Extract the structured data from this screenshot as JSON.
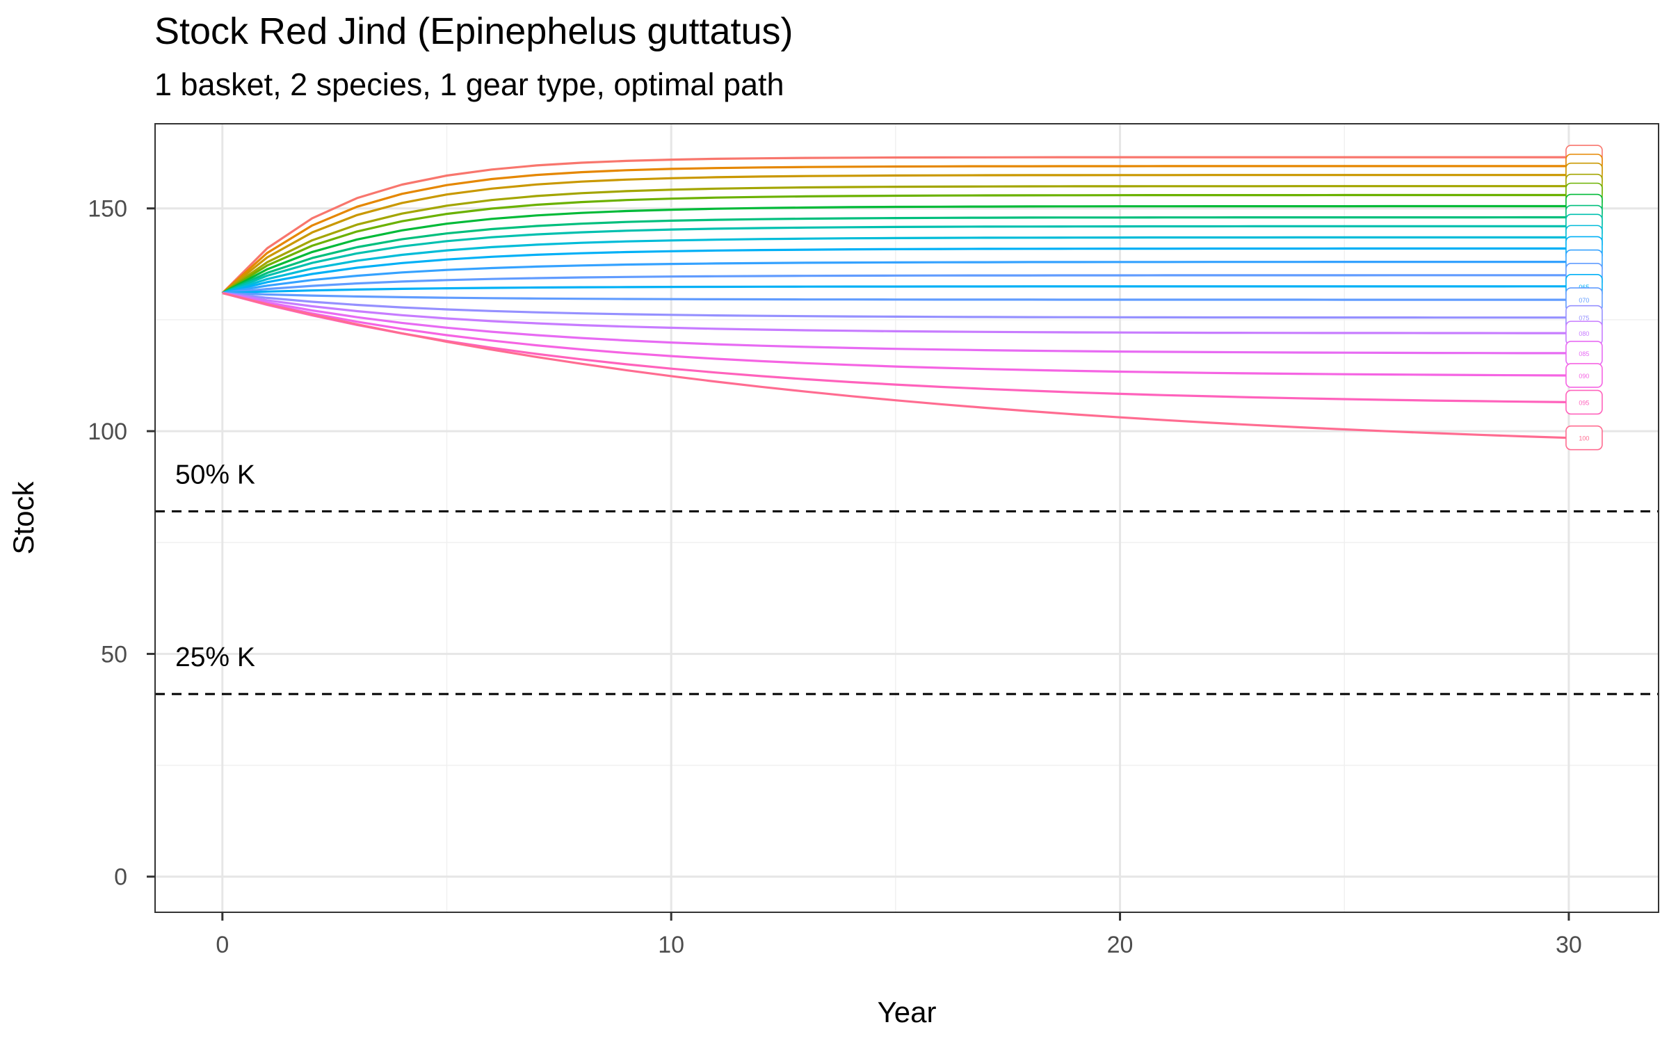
{
  "chart_data": {
    "type": "line",
    "title": "Stock Red Jind (Epinephelus guttatus)",
    "subtitle": "1 basket, 2 species, 1 gear type, optimal path",
    "xlabel": "Year",
    "ylabel": "Stock",
    "xlim": [
      -1.5,
      32
    ],
    "ylim": [
      -8,
      169
    ],
    "x_ticks": [
      0,
      10,
      20,
      30
    ],
    "y_ticks": [
      0,
      50,
      100,
      150
    ],
    "grid": true,
    "legend": "none",
    "start_value": 131,
    "reference_lines": [
      {
        "label": "50% K",
        "value": 82
      },
      {
        "label": "25% K",
        "value": 41
      }
    ],
    "series": [
      {
        "label": "",
        "final": 161.5,
        "rate": 0.4,
        "color": "#F8766D"
      },
      {
        "label": "",
        "final": 159.5,
        "rate": 0.38,
        "color": "#E58700"
      },
      {
        "label": "",
        "final": 157.5,
        "rate": 0.36,
        "color": "#C99800"
      },
      {
        "label": "",
        "final": 155.0,
        "rate": 0.34,
        "color": "#A3A500"
      },
      {
        "label": "",
        "final": 153.0,
        "rate": 0.33,
        "color": "#6BB100"
      },
      {
        "label": "",
        "final": 150.5,
        "rate": 0.32,
        "color": "#00BA38"
      },
      {
        "label": "",
        "final": 148.0,
        "rate": 0.31,
        "color": "#00BF7D"
      },
      {
        "label": "",
        "final": 146.0,
        "rate": 0.3,
        "color": "#00C0AF"
      },
      {
        "label": "",
        "final": 143.5,
        "rate": 0.29,
        "color": "#00BCD8"
      },
      {
        "label": "",
        "final": 141.0,
        "rate": 0.28,
        "color": "#00B0F6"
      },
      {
        "label": "",
        "final": 138.0,
        "rate": 0.27,
        "color": "#35A2FF"
      },
      {
        "label": "",
        "final": 135.0,
        "rate": 0.26,
        "color": "#619CFF"
      },
      {
        "label": "065",
        "final": 132.5,
        "rate": 0.25,
        "color": "#00B0F6"
      },
      {
        "label": "070",
        "final": 129.5,
        "rate": 0.24,
        "color": "#619CFF"
      },
      {
        "label": "075",
        "final": 125.5,
        "rate": 0.22,
        "color": "#9590FF"
      },
      {
        "label": "080",
        "final": 122.0,
        "rate": 0.2,
        "color": "#C77CFF"
      },
      {
        "label": "085",
        "final": 117.5,
        "rate": 0.17,
        "color": "#E76BF3"
      },
      {
        "label": "090",
        "final": 112.5,
        "rate": 0.14,
        "color": "#F564E3"
      },
      {
        "label": "095",
        "final": 106.5,
        "rate": 0.11,
        "color": "#FF62BC"
      },
      {
        "label": "100",
        "final": 98.5,
        "rate": 0.07,
        "color": "#FF6C91"
      }
    ]
  }
}
